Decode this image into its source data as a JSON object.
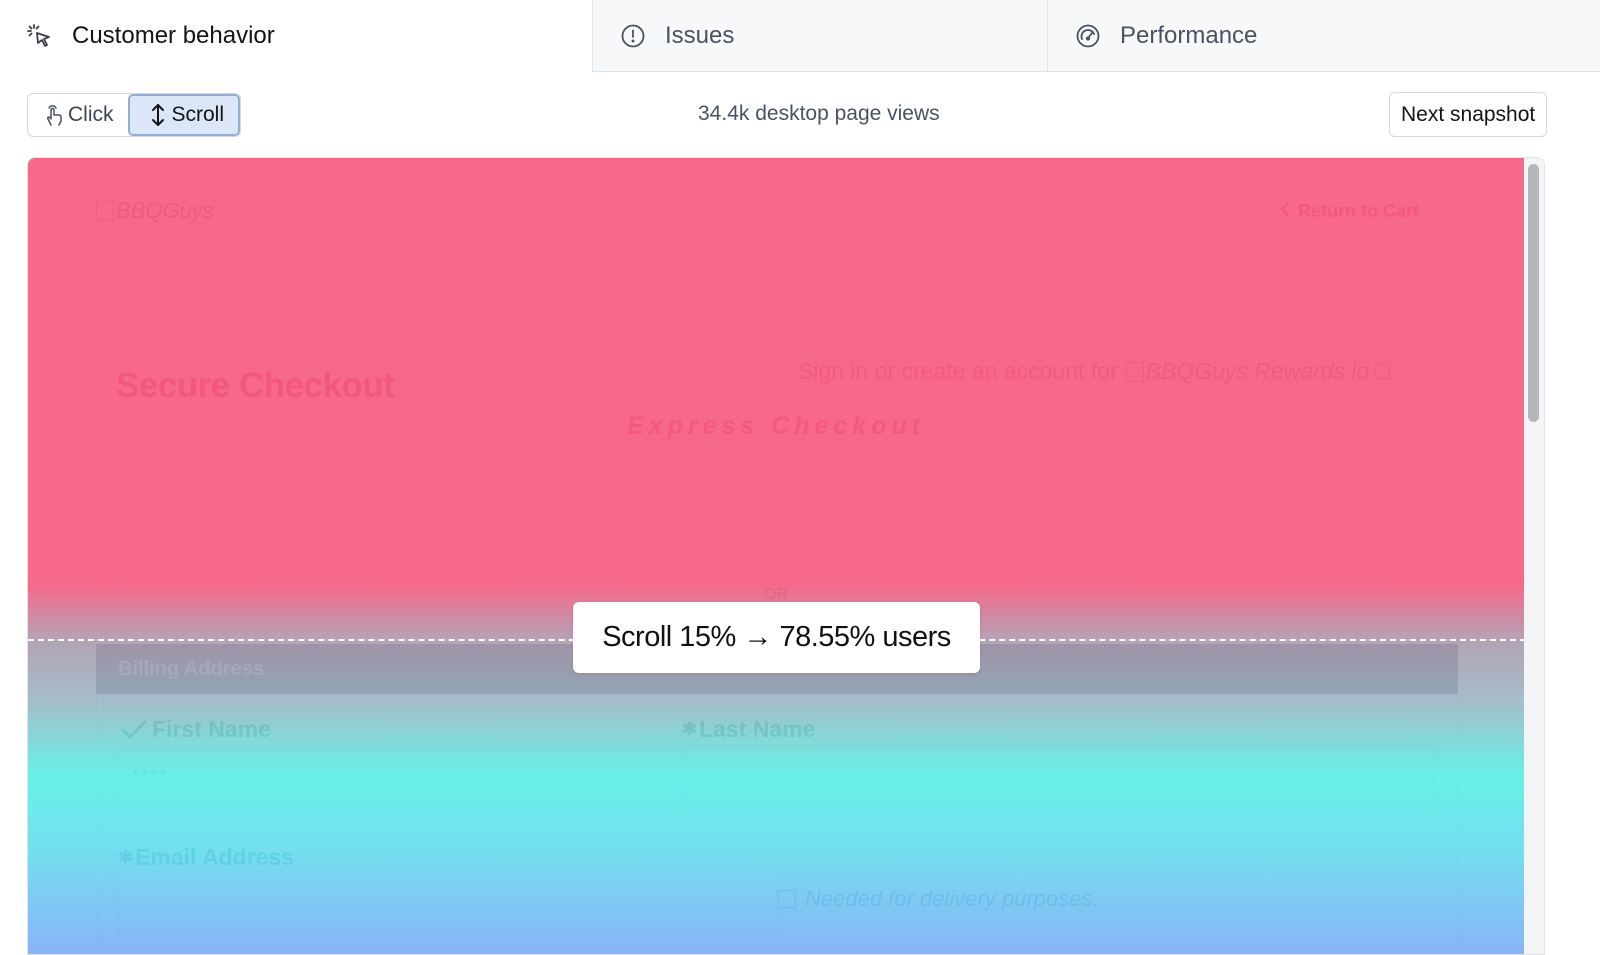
{
  "tabs": [
    {
      "label": "Customer behavior",
      "icon": "cursor-click-icon",
      "active": true
    },
    {
      "label": "Issues",
      "icon": "alert-circle-icon",
      "active": false
    },
    {
      "label": "Performance",
      "icon": "speedometer-icon",
      "active": false
    }
  ],
  "toolbar": {
    "click_label": "Click",
    "scroll_label": "Scroll",
    "selected_mode": "Scroll",
    "page_views": "34.4k desktop page views",
    "next_label": "Next snapshot"
  },
  "snapshot": {
    "logo_alt": "BBQGuys",
    "return_label": "Return to Cart",
    "title": "Secure Checkout",
    "signin_link": "Sign in",
    "signin_or": "or",
    "create_link": "create an account",
    "signin_for": "for",
    "rewards_alt": "BBQGuys Rewards lo",
    "express_checkout": "Express Checkout",
    "or_label": "OR",
    "billing_header": "Billing Address",
    "first_name_label": "First Name",
    "first_name_value": "****",
    "last_name_label": "Last Name",
    "email_label": "Email Address",
    "email_note": "Needed for delivery purposes."
  },
  "heatmap": {
    "tooltip": "Scroll 15% → 78.55% users",
    "scroll_depth_percent": 15,
    "users_percent": 78.55,
    "colors": {
      "hot": "#f65c80",
      "mid": "#5af0e6",
      "cool": "#80acf6"
    }
  }
}
